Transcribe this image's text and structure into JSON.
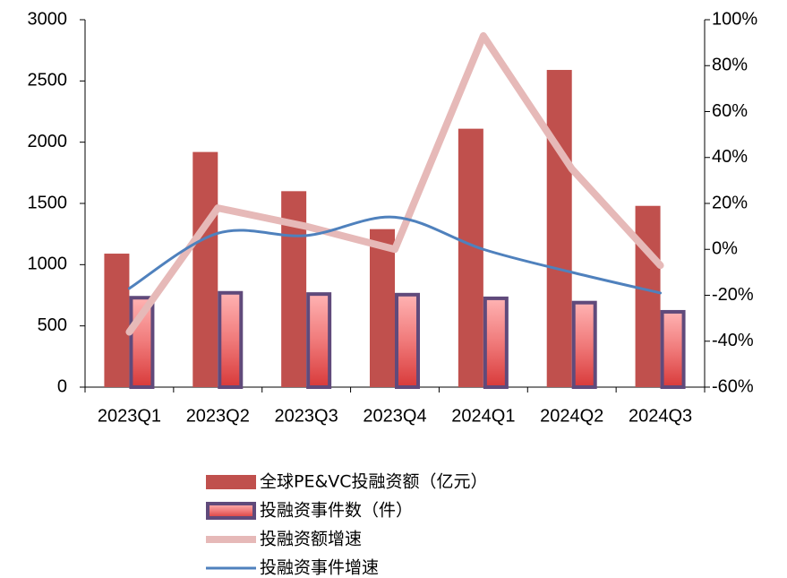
{
  "chart_data": {
    "type": "bar",
    "categories": [
      "2023Q1",
      "2023Q2",
      "2023Q3",
      "2023Q4",
      "2024Q1",
      "2024Q2",
      "2024Q3"
    ],
    "series": [
      {
        "name": "全球PE&VC投融资额（亿元）",
        "type": "bar",
        "color": "#c0504d",
        "values": [
          1090,
          1920,
          1600,
          1290,
          2110,
          2590,
          1480
        ]
      },
      {
        "name": "投融资事件数（件）",
        "type": "bar",
        "color": "#e85a5a",
        "outline": "#604a7b",
        "values": [
          730,
          770,
          760,
          755,
          725,
          690,
          615
        ]
      },
      {
        "name": "投融资额增速",
        "type": "line",
        "axis": "y2",
        "color": "#e6b9b8",
        "values": [
          -36,
          18,
          10,
          0,
          93,
          35,
          -7
        ]
      },
      {
        "name": "投融资事件增速",
        "type": "line",
        "axis": "y2",
        "color": "#4f81bd",
        "smooth": true,
        "values": [
          -17,
          7,
          6,
          14,
          0,
          -10,
          -19
        ]
      }
    ],
    "ylim": [
      0,
      3000
    ],
    "yticks": [
      0,
      500,
      1000,
      1500,
      2000,
      2500,
      3000
    ],
    "y2lim": [
      -60,
      100
    ],
    "y2ticks": [
      {
        "value": -60,
        "label": "-60%"
      },
      {
        "value": -40,
        "label": "-40%"
      },
      {
        "value": -20,
        "label": "-20%"
      },
      {
        "value": 0,
        "label": "0%"
      },
      {
        "value": 20,
        "label": "20%"
      },
      {
        "value": 40,
        "label": "40%"
      },
      {
        "value": 60,
        "label": "60%"
      },
      {
        "value": 80,
        "label": "80%"
      },
      {
        "value": 100,
        "label": "100%"
      }
    ],
    "legend": "bottom"
  }
}
